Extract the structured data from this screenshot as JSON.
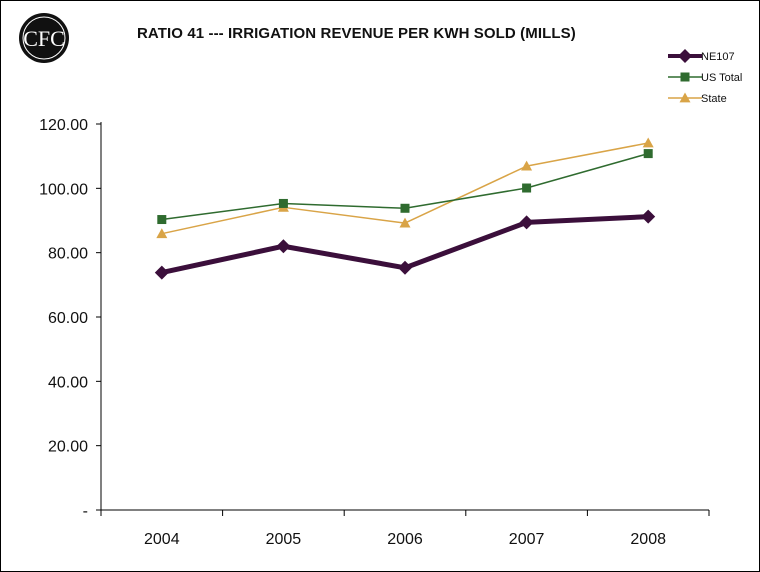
{
  "logo": {
    "text": "CFC",
    "icon": "cfc-logo-icon"
  },
  "chart_data": {
    "type": "line",
    "title": "RATIO 41 --- IRRIGATION REVENUE PER KWH SOLD (MILLS)",
    "xlabel": "",
    "ylabel": "",
    "categories": [
      "2004",
      "2005",
      "2006",
      "2007",
      "2008"
    ],
    "ylim": [
      0,
      120
    ],
    "yticks": [
      0,
      20,
      40,
      60,
      80,
      100,
      120
    ],
    "ytick_labels": [
      "-",
      "20.00",
      "40.00",
      "60.00",
      "80.00",
      "100.00",
      "120.00"
    ],
    "grid": false,
    "legend_position": "top-right",
    "series": [
      {
        "name": "NE107",
        "values": [
          73.8,
          82.0,
          75.3,
          89.4,
          91.2
        ],
        "color": "#3b0f3b",
        "marker": "diamond"
      },
      {
        "name": "US Total",
        "values": [
          90.3,
          95.3,
          93.8,
          100.1,
          110.8
        ],
        "color": "#2f6b2f",
        "marker": "square"
      },
      {
        "name": "State",
        "values": [
          85.9,
          94.1,
          89.2,
          106.9,
          114.1
        ],
        "color": "#d9a447",
        "marker": "triangle"
      }
    ]
  }
}
